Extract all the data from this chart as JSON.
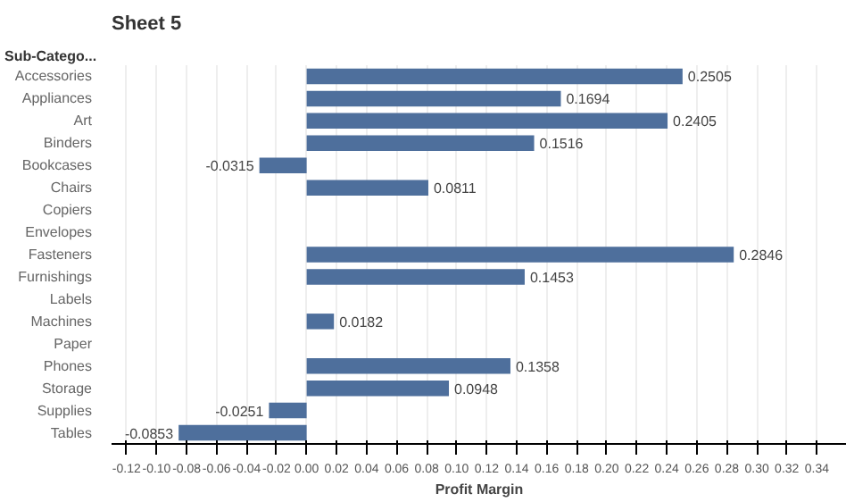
{
  "chart_data": {
    "type": "bar",
    "orientation": "horizontal",
    "title": "Sheet 5",
    "ylabel": "Sub-Catego...",
    "xlabel": "Profit Margin",
    "categories": [
      "Accessories",
      "Appliances",
      "Art",
      "Binders",
      "Bookcases",
      "Chairs",
      "Copiers",
      "Envelopes",
      "Fasteners",
      "Furnishings",
      "Labels",
      "Machines",
      "Paper",
      "Phones",
      "Storage",
      "Supplies",
      "Tables"
    ],
    "values": [
      0.2505,
      0.1694,
      0.2405,
      0.1516,
      -0.0315,
      0.0811,
      null,
      null,
      0.2846,
      0.1453,
      null,
      0.0182,
      null,
      0.1358,
      0.0948,
      -0.0251,
      -0.0853
    ],
    "value_labels": [
      "0.2505",
      "0.1694",
      "0.2405",
      "0.1516",
      "-0.0315",
      "0.0811",
      null,
      null,
      "0.2846",
      "0.1453",
      null,
      "0.0182",
      null,
      "0.1358",
      "0.0948",
      "-0.0251",
      "-0.0853"
    ],
    "color": "#4e6f9c",
    "xlim": [
      -0.13,
      0.36
    ],
    "xticks": [
      {
        "value": -0.12,
        "label": "-0.12"
      },
      {
        "value": -0.1,
        "label": "-0.10"
      },
      {
        "value": -0.08,
        "label": "-0.08"
      },
      {
        "value": -0.06,
        "label": "-0.06"
      },
      {
        "value": -0.04,
        "label": "-0.04"
      },
      {
        "value": -0.02,
        "label": "-0.02"
      },
      {
        "value": 0,
        "label": "0.00"
      },
      {
        "value": 0.02,
        "label": "0.02"
      },
      {
        "value": 0.04,
        "label": "0.04"
      },
      {
        "value": 0.06,
        "label": "0.06"
      },
      {
        "value": 0.08,
        "label": "0.08"
      },
      {
        "value": 0.1,
        "label": "0.10"
      },
      {
        "value": 0.12,
        "label": "0.12"
      },
      {
        "value": 0.14,
        "label": "0.14"
      },
      {
        "value": 0.16,
        "label": "0.16"
      },
      {
        "value": 0.18,
        "label": "0.18"
      },
      {
        "value": 0.2,
        "label": "0.20"
      },
      {
        "value": 0.22,
        "label": "0.22"
      },
      {
        "value": 0.24,
        "label": "0.24"
      },
      {
        "value": 0.26,
        "label": "0.26"
      },
      {
        "value": 0.28,
        "label": "0.28"
      },
      {
        "value": 0.3,
        "label": "0.30"
      },
      {
        "value": 0.32,
        "label": "0.32"
      },
      {
        "value": 0.34,
        "label": "0.34"
      }
    ],
    "grid": "x"
  }
}
